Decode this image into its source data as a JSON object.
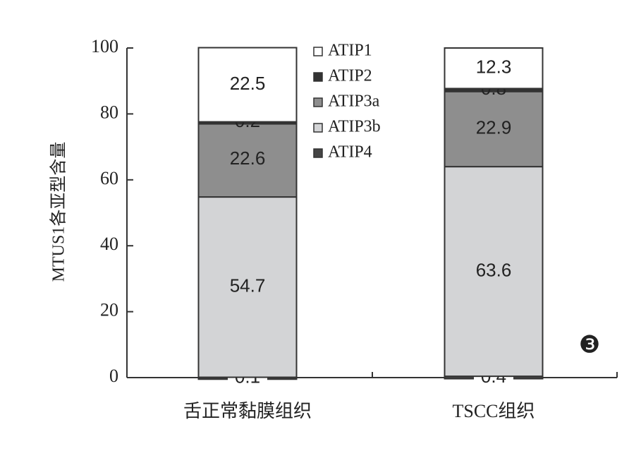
{
  "chart_data": {
    "type": "stacked-bar",
    "y_label": "MTUS1各亚型含量",
    "categories": [
      "舌正常黏膜组织",
      "TSCC组织"
    ],
    "series": [
      {
        "name": "ATIP1",
        "color": "#ffffff",
        "values": [
          22.5,
          12.3
        ]
      },
      {
        "name": "ATIP2",
        "color": "#333333",
        "values": [
          0.2,
          0.8
        ]
      },
      {
        "name": "ATIP3a",
        "color": "#8e8e8e",
        "values": [
          22.6,
          22.9
        ]
      },
      {
        "name": "ATIP3b",
        "color": "#d3d4d6",
        "values": [
          54.7,
          63.6
        ]
      },
      {
        "name": "ATIP4",
        "color": "#444444",
        "values": [
          0.1,
          0.4
        ]
      }
    ],
    "ylim": [
      0,
      100
    ],
    "yticks": [
      0,
      20,
      40,
      60,
      80,
      100
    ],
    "annotation": "❸"
  }
}
